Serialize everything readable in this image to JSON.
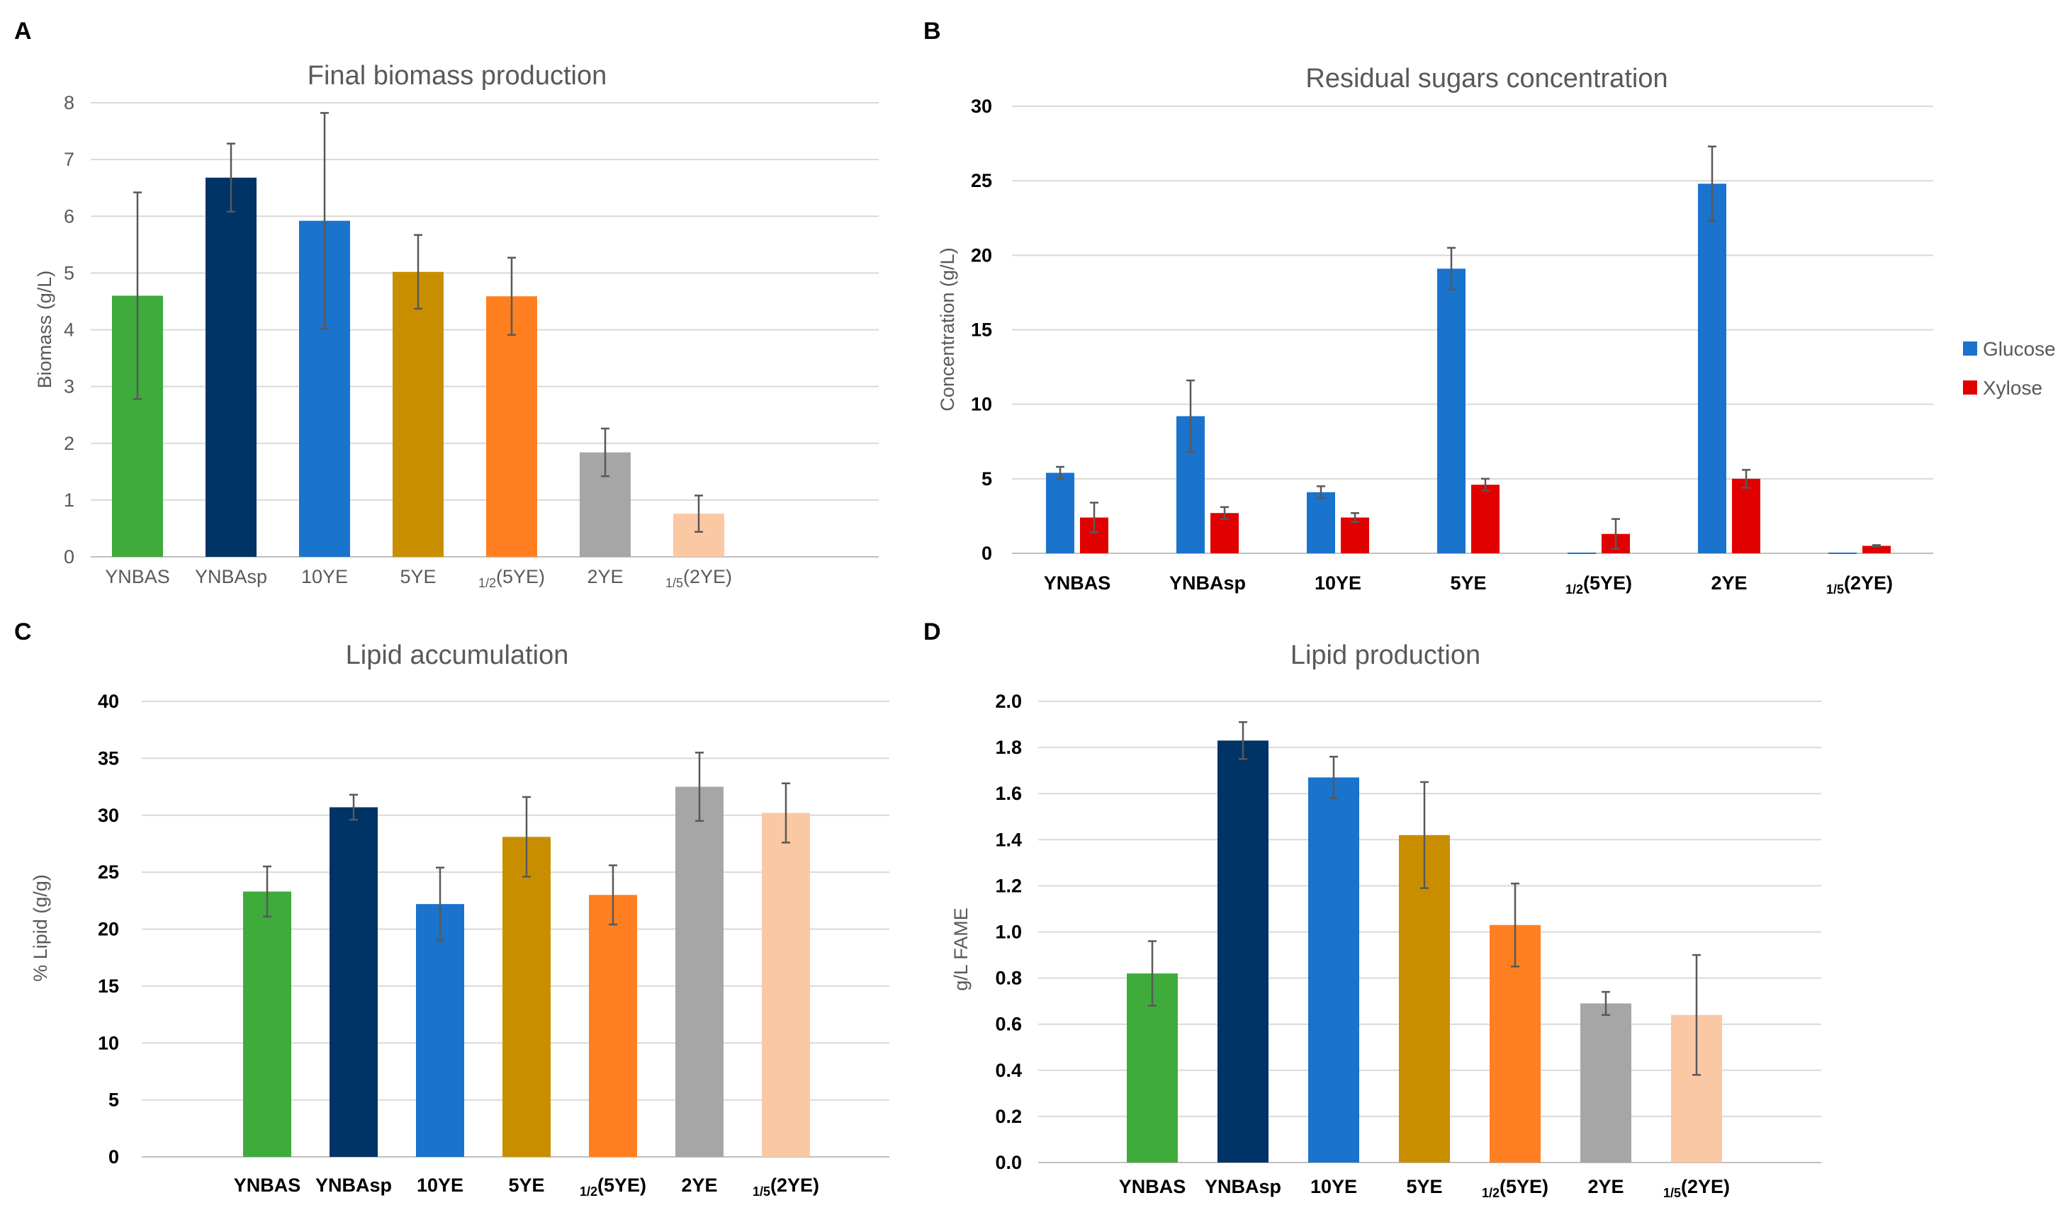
{
  "colors": {
    "YNBAS": "#3eab3b",
    "YNBAsp": "#003366",
    "10YE": "#1a73cc",
    "5YE": "#c98e00",
    "half5YE": "#ff7f21",
    "2YE": "#a6a6a6",
    "fifth2YE": "#fbc8a4",
    "Glucose": "#1a73cc",
    "Xylose": "#e00000"
  },
  "chart_data": [
    {
      "panel": "A",
      "type": "bar",
      "title": "Final biomass production",
      "xlabel": "",
      "ylabel": "Biomass (g/L)",
      "ylim": [
        0,
        8
      ],
      "yticks": [
        "0",
        "1",
        "2",
        "3",
        "4",
        "5",
        "6",
        "7",
        "8"
      ],
      "tick_style": "plain",
      "categories": [
        {
          "label": "YNBAS"
        },
        {
          "label": "YNBAsp"
        },
        {
          "label": "10YE"
        },
        {
          "label": "5YE"
        },
        {
          "label": "(5YE)",
          "sub": "1/2"
        },
        {
          "label": "2YE"
        },
        {
          "label": "(2YE)",
          "sub": "1/5"
        }
      ],
      "values": [
        4.6,
        6.68,
        5.92,
        5.02,
        4.59,
        1.84,
        0.76
      ],
      "errors": [
        1.82,
        0.6,
        1.9,
        0.65,
        0.68,
        0.42,
        0.32
      ],
      "color_keys": [
        "YNBAS",
        "YNBAsp",
        "10YE",
        "5YE",
        "half5YE",
        "2YE",
        "fifth2YE"
      ]
    },
    {
      "panel": "B",
      "type": "bar",
      "title": "Residual sugars concentration",
      "xlabel": "",
      "ylabel": "Concentration (g/L)",
      "ylim": [
        0,
        30
      ],
      "yticks": [
        "0",
        "5",
        "10",
        "15",
        "20",
        "25",
        "30"
      ],
      "tick_style": "bold",
      "categories": [
        {
          "label": "YNBAS"
        },
        {
          "label": "YNBAsp"
        },
        {
          "label": "10YE"
        },
        {
          "label": "5YE"
        },
        {
          "label": "(5YE)",
          "sub": "1/2"
        },
        {
          "label": "2YE"
        },
        {
          "label": "(2YE)",
          "sub": "1/5"
        }
      ],
      "series": [
        {
          "name": "Glucose",
          "values": [
            5.4,
            9.2,
            4.1,
            19.1,
            0.0,
            24.8,
            0.0
          ],
          "errors": [
            0.4,
            2.4,
            0.4,
            1.4,
            0.0,
            2.5,
            0.0
          ],
          "color_key": "Glucose"
        },
        {
          "name": "Xylose",
          "values": [
            2.4,
            2.7,
            2.4,
            4.6,
            1.3,
            5.0,
            0.5
          ],
          "errors": [
            1.0,
            0.4,
            0.3,
            0.4,
            1.0,
            0.6,
            0.05
          ],
          "color_key": "Xylose"
        }
      ],
      "legend": [
        "Glucose",
        "Xylose"
      ],
      "legend_position": "right"
    },
    {
      "panel": "C",
      "type": "bar",
      "title": "Lipid accumulation",
      "xlabel": "",
      "ylabel": "% Lipid (g/g)",
      "ylim": [
        0,
        40
      ],
      "yticks": [
        "0",
        "5",
        "10",
        "15",
        "20",
        "25",
        "30",
        "35",
        "40"
      ],
      "tick_style": "bold",
      "categories": [
        {
          "label": "YNBAS"
        },
        {
          "label": "YNBAsp"
        },
        {
          "label": "10YE"
        },
        {
          "label": "5YE"
        },
        {
          "label": "(5YE)",
          "sub": "1/2"
        },
        {
          "label": "2YE"
        },
        {
          "label": "(2YE)",
          "sub": "1/5"
        }
      ],
      "values": [
        23.3,
        30.7,
        22.2,
        28.1,
        23.0,
        32.5,
        30.2
      ],
      "errors": [
        2.2,
        1.1,
        3.2,
        3.5,
        2.6,
        3.0,
        2.6
      ],
      "color_keys": [
        "YNBAS",
        "YNBAsp",
        "10YE",
        "5YE",
        "half5YE",
        "2YE",
        "fifth2YE"
      ]
    },
    {
      "panel": "D",
      "type": "bar",
      "title": "Lipid production",
      "xlabel": "",
      "ylabel": "g/L FAME",
      "ylim": [
        0,
        2.0
      ],
      "yticks": [
        "0.0",
        "0.2",
        "0.4",
        "0.6",
        "0.8",
        "1.0",
        "1.2",
        "1.4",
        "1.6",
        "1.8",
        "2.0"
      ],
      "tick_style": "bold",
      "categories": [
        {
          "label": "YNBAS"
        },
        {
          "label": "YNBAsp"
        },
        {
          "label": "10YE"
        },
        {
          "label": "5YE"
        },
        {
          "label": "(5YE)",
          "sub": "1/2"
        },
        {
          "label": "2YE"
        },
        {
          "label": "(2YE)",
          "sub": "1/5"
        }
      ],
      "values": [
        0.82,
        1.83,
        1.67,
        1.42,
        1.03,
        0.69,
        0.64
      ],
      "errors": [
        0.14,
        0.08,
        0.09,
        0.23,
        0.18,
        0.05,
        0.26
      ],
      "color_keys": [
        "YNBAS",
        "YNBAsp",
        "10YE",
        "5YE",
        "half5YE",
        "2YE",
        "fifth2YE"
      ]
    }
  ]
}
